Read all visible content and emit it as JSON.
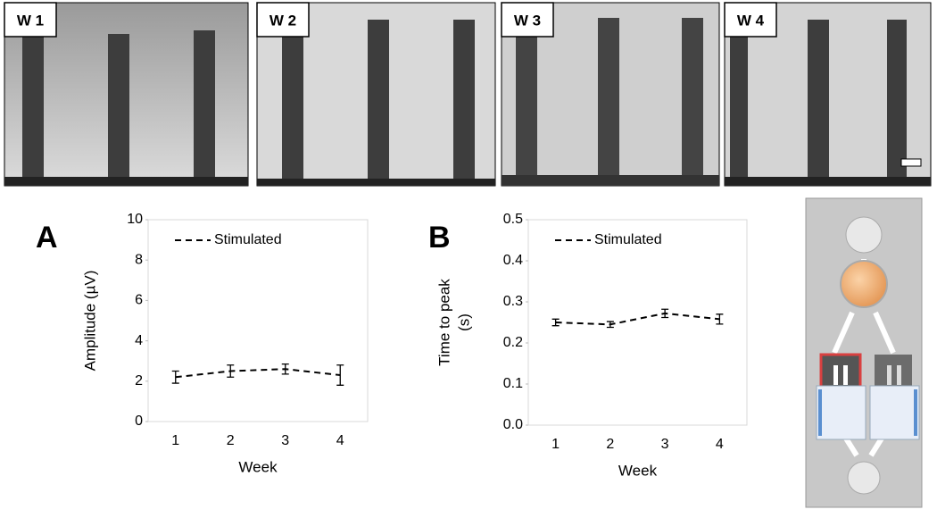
{
  "micrographs": [
    {
      "label": "W 1"
    },
    {
      "label": "W 2"
    },
    {
      "label": "W 3"
    },
    {
      "label": "W 4"
    }
  ],
  "chart_data": [
    {
      "type": "line",
      "panel_label": "A",
      "xlabel": "Week",
      "ylabel": [
        "Amplitude (µV)"
      ],
      "categories": [
        "1",
        "2",
        "3",
        "4"
      ],
      "series": [
        {
          "name": "Stimulated",
          "color": "#000000",
          "values": [
            2.2,
            2.5,
            2.6,
            2.3
          ],
          "errors": [
            0.3,
            0.3,
            0.25,
            0.5
          ]
        }
      ],
      "ylim": [
        0,
        10
      ],
      "yticks": [
        0,
        2,
        4,
        6,
        8,
        10
      ],
      "legend": "top-left"
    },
    {
      "type": "line",
      "panel_label": "B",
      "xlabel": "Week",
      "ylabel": [
        "Time to peak",
        "(s)"
      ],
      "categories": [
        "1",
        "2",
        "3",
        "4"
      ],
      "series": [
        {
          "name": "Stimulated",
          "color": "#000000",
          "values": [
            0.25,
            0.245,
            0.272,
            0.258
          ],
          "errors": [
            0.008,
            0.007,
            0.01,
            0.012
          ]
        }
      ],
      "ylim": [
        0,
        0.5
      ],
      "yticks": [
        {
          "value": 0,
          "label": "0.0"
        },
        0.1,
        0.2,
        0.3,
        0.4,
        0.5
      ],
      "legend": "top-left"
    }
  ]
}
